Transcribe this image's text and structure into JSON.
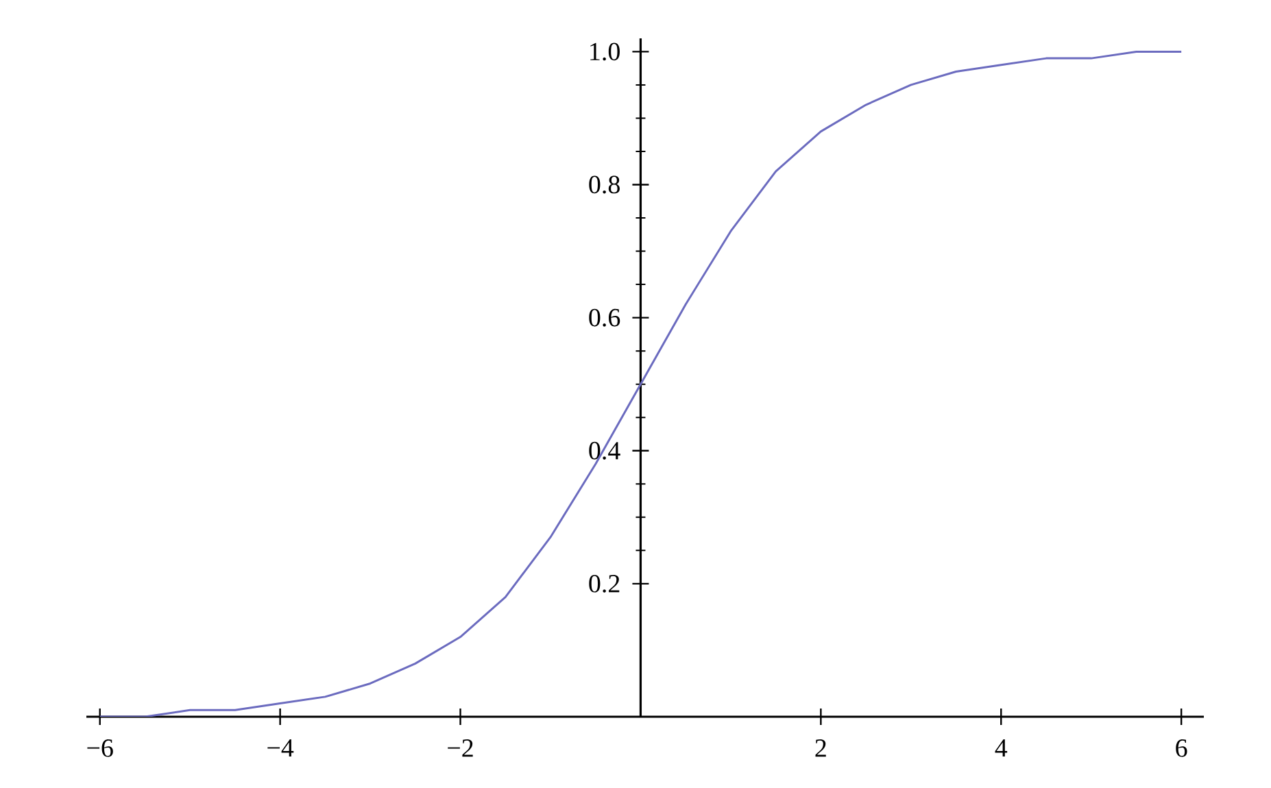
{
  "chart_data": {
    "type": "line",
    "color": "#6b6bbf",
    "x": [
      -6,
      -5.5,
      -5,
      -4.5,
      -4,
      -3.5,
      -3,
      -2.5,
      -2,
      -1.5,
      -1,
      -0.5,
      0,
      0.5,
      1,
      1.5,
      2,
      2.5,
      3,
      3.5,
      4,
      4.5,
      5,
      5.5,
      6
    ],
    "values": [
      0.0,
      0.0,
      0.01,
      0.01,
      0.02,
      0.03,
      0.05,
      0.08,
      0.12,
      0.18,
      0.27,
      0.38,
      0.5,
      0.62,
      0.73,
      0.82,
      0.88,
      0.92,
      0.95,
      0.97,
      0.98,
      0.99,
      0.99,
      1.0,
      1.0
    ],
    "xlim": [
      -6.15,
      6.25
    ],
    "ylim": [
      0,
      1.02
    ],
    "xticks": [
      {
        "value": -6,
        "label": "−6"
      },
      {
        "value": -4,
        "label": "−4"
      },
      {
        "value": -2,
        "label": "−2"
      },
      2,
      4,
      6
    ],
    "yticks": [
      0.2,
      0.4,
      0.6,
      0.8,
      {
        "value": 1,
        "label": "1.0"
      }
    ],
    "marker": "none",
    "line_style": "solid"
  }
}
